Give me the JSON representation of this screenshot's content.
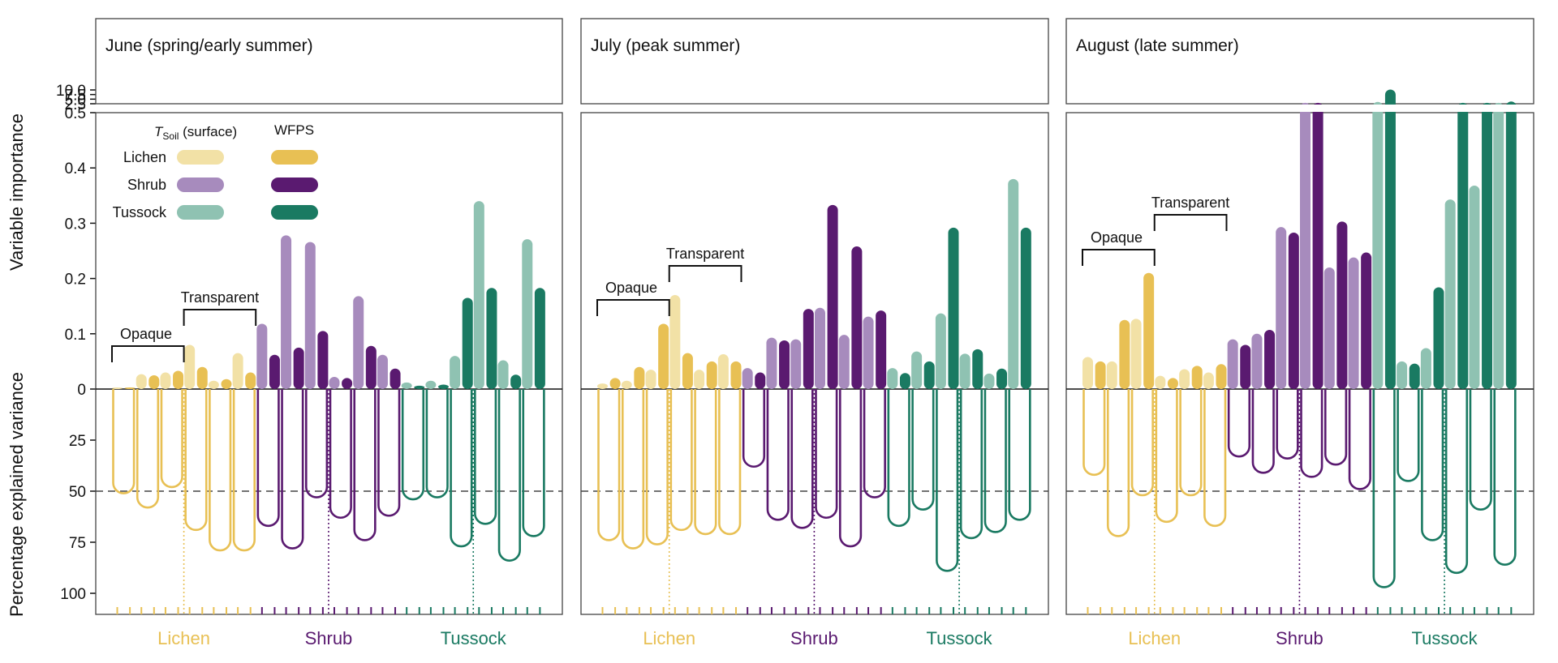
{
  "figure": {
    "y_label_top": "Variable importance",
    "y_label_bottom": "Percentage explained variance",
    "group_labels": [
      "Lichen",
      "Shrub",
      "Tussock"
    ],
    "bracket_labels": {
      "opaque": "Opaque",
      "transparent": "Transparent"
    },
    "legend": {
      "col1_prefix": "T",
      "col1_sub": "Soil",
      "col1_suffix": " (surface)",
      "col2": "WFPS",
      "rows": [
        "Lichen",
        "Shrub",
        "Tussock"
      ]
    },
    "colors": {
      "lichen_light": "#f2e1a6",
      "lichen_dark": "#e8c054",
      "shrub_light": "#a78bbd",
      "shrub_dark": "#5a1a70",
      "tussock_light": "#8fc2b2",
      "tussock_dark": "#1a7a62"
    },
    "axis": {
      "broken_ticks": [
        "2.5",
        "5.0",
        "7.5",
        "10.0"
      ],
      "importance_ticks": [
        "0",
        "0.1",
        "0.2",
        "0.3",
        "0.4",
        "0.5"
      ],
      "variance_ticks": [
        "25",
        "50",
        "75",
        "100"
      ]
    }
  },
  "chart_data": [
    {
      "type": "bar",
      "title": "June (spring/early summer)",
      "series": [
        {
          "name": "Variable importance",
          "values": [
            0.003,
            0.003,
            0.027,
            0.025,
            0.03,
            0.033,
            0.08,
            0.04,
            0.015,
            0.018,
            0.065,
            0.03,
            0.118,
            0.062,
            0.278,
            0.075,
            0.266,
            0.105,
            0.022,
            0.02,
            0.168,
            0.078,
            0.062,
            0.037,
            0.012,
            0.006,
            0.015,
            0.008,
            0.06,
            0.165,
            0.34,
            0.183,
            0.052,
            0.026,
            0.271,
            0.183
          ]
        },
        {
          "name": "Percentage explained variance",
          "values": [
            51,
            null,
            58,
            null,
            48,
            null,
            69,
            null,
            79,
            null,
            79,
            null,
            67,
            null,
            78,
            null,
            53,
            null,
            63,
            null,
            74,
            null,
            62,
            null,
            54,
            null,
            53,
            null,
            77,
            null,
            66,
            null,
            84,
            null,
            72,
            null
          ]
        }
      ],
      "ylim_importance": [
        0,
        10.5
      ],
      "ylim_variance": [
        0,
        110
      ]
    },
    {
      "type": "bar",
      "title": "July (peak summer)",
      "series": [
        {
          "name": "Variable importance",
          "values": [
            0.01,
            0.02,
            0.015,
            0.04,
            0.035,
            0.118,
            0.17,
            0.065,
            0.035,
            0.05,
            0.063,
            0.05,
            0.038,
            0.03,
            0.093,
            0.088,
            0.09,
            0.145,
            0.147,
            0.333,
            0.098,
            0.258,
            0.131,
            0.142,
            0.038,
            0.029,
            0.068,
            0.05,
            0.137,
            0.292,
            0.064,
            0.072,
            0.028,
            0.037,
            0.38,
            0.292
          ]
        },
        {
          "name": "Percentage explained variance",
          "values": [
            74,
            null,
            78,
            null,
            76,
            null,
            69,
            null,
            71,
            null,
            71,
            null,
            38,
            null,
            64,
            null,
            68,
            null,
            63,
            null,
            77,
            null,
            53,
            null,
            67,
            null,
            59,
            null,
            89,
            null,
            73,
            null,
            70,
            null,
            64,
            null
          ]
        }
      ],
      "ylim_importance": [
        0,
        10.5
      ],
      "ylim_variance": [
        0,
        110
      ]
    },
    {
      "type": "bar",
      "title": "August (late summer)",
      "series": [
        {
          "name": "Variable importance",
          "values": [
            0.058,
            0.05,
            0.05,
            0.125,
            0.127,
            0.21,
            0.024,
            0.02,
            0.036,
            0.042,
            0.03,
            0.045,
            0.09,
            0.08,
            0.1,
            0.107,
            0.293,
            0.283,
            3.0,
            3.0,
            0.22,
            0.303,
            0.238,
            0.247,
            3.5,
            10.2,
            0.05,
            0.046,
            0.074,
            0.184,
            0.343,
            3.0,
            0.368,
            3.0,
            3.0,
            3.7
          ]
        },
        {
          "name": "Percentage explained variance",
          "values": [
            42,
            null,
            72,
            null,
            52,
            null,
            65,
            null,
            52,
            null,
            67,
            null,
            33,
            null,
            41,
            null,
            34,
            null,
            43,
            null,
            37,
            null,
            49,
            null,
            97,
            null,
            45,
            null,
            74,
            null,
            90,
            null,
            59,
            null,
            86,
            null
          ]
        }
      ],
      "ylim_importance": [
        0,
        10.5
      ],
      "ylim_variance": [
        0,
        110
      ]
    }
  ]
}
